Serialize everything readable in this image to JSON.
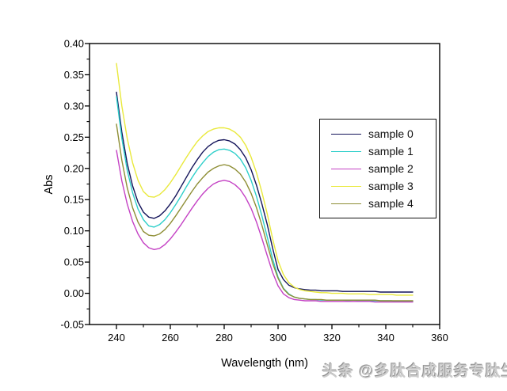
{
  "watermark": {
    "text": "头条 @多肽合成服务专肽生物"
  },
  "chart_data": {
    "type": "line",
    "title": "",
    "xlabel": "Wavelength (nm)",
    "ylabel": "Abs",
    "xlim": [
      230,
      360
    ],
    "ylim": [
      -0.05,
      0.4
    ],
    "grid": false,
    "legend_position": "upper-right-inside",
    "x_tick_values": [
      240,
      260,
      280,
      300,
      320,
      340,
      360
    ],
    "x_tick_labels": [
      "240",
      "260",
      "280",
      "300",
      "320",
      "340",
      "360"
    ],
    "x_minor_tick_values": [
      250,
      270,
      290,
      310,
      330,
      350
    ],
    "y_tick_values": [
      -0.05,
      0.0,
      0.05,
      0.1,
      0.15,
      0.2,
      0.25,
      0.3,
      0.35,
      0.4
    ],
    "y_tick_labels": [
      "-0.05",
      "0.00",
      "0.05",
      "0.10",
      "0.15",
      "0.20",
      "0.25",
      "0.30",
      "0.35",
      "0.40"
    ],
    "y_minor_tick_values": [
      -0.025,
      0.025,
      0.075,
      0.125,
      0.175,
      0.225,
      0.275,
      0.325,
      0.375
    ],
    "x": [
      240,
      242,
      244,
      246,
      248,
      250,
      252,
      254,
      256,
      258,
      260,
      262,
      264,
      266,
      268,
      270,
      272,
      274,
      276,
      278,
      280,
      282,
      284,
      286,
      288,
      290,
      292,
      294,
      296,
      298,
      300,
      302,
      304,
      306,
      308,
      310,
      312,
      314,
      316,
      318,
      320,
      322,
      324,
      326,
      328,
      330,
      332,
      334,
      336,
      338,
      340,
      342,
      344,
      346,
      348,
      350
    ],
    "series": [
      {
        "name": "sample 0",
        "color": "#14145a",
        "values": [
          0.322,
          0.258,
          0.208,
          0.172,
          0.146,
          0.13,
          0.122,
          0.12,
          0.124,
          0.132,
          0.143,
          0.156,
          0.171,
          0.186,
          0.201,
          0.214,
          0.226,
          0.235,
          0.241,
          0.245,
          0.246,
          0.244,
          0.239,
          0.23,
          0.217,
          0.198,
          0.173,
          0.143,
          0.11,
          0.072,
          0.038,
          0.022,
          0.013,
          0.009,
          0.007,
          0.006,
          0.005,
          0.005,
          0.004,
          0.004,
          0.004,
          0.004,
          0.003,
          0.003,
          0.003,
          0.003,
          0.003,
          0.003,
          0.003,
          0.002,
          0.002,
          0.002,
          0.002,
          0.002,
          0.002,
          0.002
        ]
      },
      {
        "name": "sample 1",
        "color": "#2ecfca",
        "values": [
          0.315,
          0.248,
          0.197,
          0.161,
          0.135,
          0.118,
          0.108,
          0.106,
          0.11,
          0.118,
          0.129,
          0.142,
          0.156,
          0.171,
          0.185,
          0.198,
          0.209,
          0.219,
          0.226,
          0.23,
          0.231,
          0.229,
          0.224,
          0.215,
          0.201,
          0.181,
          0.155,
          0.124,
          0.09,
          0.055,
          0.026,
          0.008,
          -0.001,
          -0.006,
          -0.008,
          -0.009,
          -0.01,
          -0.01,
          -0.011,
          -0.011,
          -0.011,
          -0.011,
          -0.011,
          -0.012,
          -0.011,
          -0.012,
          -0.012,
          -0.012,
          -0.012,
          -0.012,
          -0.012,
          -0.012,
          -0.013,
          -0.013,
          -0.013,
          -0.013
        ]
      },
      {
        "name": "sample 2",
        "color": "#c441c4",
        "values": [
          0.229,
          0.18,
          0.143,
          0.115,
          0.095,
          0.081,
          0.073,
          0.07,
          0.072,
          0.078,
          0.087,
          0.098,
          0.11,
          0.123,
          0.136,
          0.148,
          0.159,
          0.168,
          0.175,
          0.179,
          0.181,
          0.179,
          0.174,
          0.166,
          0.153,
          0.136,
          0.114,
          0.088,
          0.06,
          0.033,
          0.012,
          -0.001,
          -0.007,
          -0.01,
          -0.011,
          -0.012,
          -0.012,
          -0.012,
          -0.013,
          -0.013,
          -0.013,
          -0.013,
          -0.013,
          -0.013,
          -0.013,
          -0.013,
          -0.013,
          -0.013,
          -0.014,
          -0.014,
          -0.014,
          -0.014,
          -0.014,
          -0.014,
          -0.014,
          -0.014
        ]
      },
      {
        "name": "sample 3",
        "color": "#e9e93c",
        "values": [
          0.368,
          0.3,
          0.248,
          0.209,
          0.181,
          0.163,
          0.155,
          0.154,
          0.158,
          0.166,
          0.177,
          0.19,
          0.204,
          0.218,
          0.231,
          0.243,
          0.252,
          0.259,
          0.263,
          0.265,
          0.265,
          0.263,
          0.258,
          0.25,
          0.237,
          0.218,
          0.193,
          0.162,
          0.127,
          0.087,
          0.052,
          0.03,
          0.017,
          0.01,
          0.006,
          0.004,
          0.003,
          0.002,
          0.001,
          0.001,
          0.0,
          0.0,
          0.0,
          -0.001,
          -0.001,
          -0.001,
          -0.001,
          -0.002,
          -0.002,
          -0.002,
          -0.002,
          -0.002,
          -0.003,
          -0.003,
          -0.003,
          -0.003
        ]
      },
      {
        "name": "sample 4",
        "color": "#8e8e35",
        "values": [
          0.271,
          0.213,
          0.169,
          0.137,
          0.114,
          0.099,
          0.093,
          0.092,
          0.095,
          0.102,
          0.112,
          0.124,
          0.137,
          0.15,
          0.163,
          0.175,
          0.185,
          0.194,
          0.2,
          0.204,
          0.206,
          0.204,
          0.199,
          0.191,
          0.178,
          0.16,
          0.137,
          0.109,
          0.078,
          0.048,
          0.024,
          0.007,
          -0.002,
          -0.006,
          -0.008,
          -0.009,
          -0.01,
          -0.01,
          -0.01,
          -0.011,
          -0.011,
          -0.011,
          -0.011,
          -0.011,
          -0.011,
          -0.011,
          -0.011,
          -0.011,
          -0.011,
          -0.012,
          -0.012,
          -0.012,
          -0.012,
          -0.012,
          -0.012,
          -0.012
        ]
      }
    ]
  }
}
